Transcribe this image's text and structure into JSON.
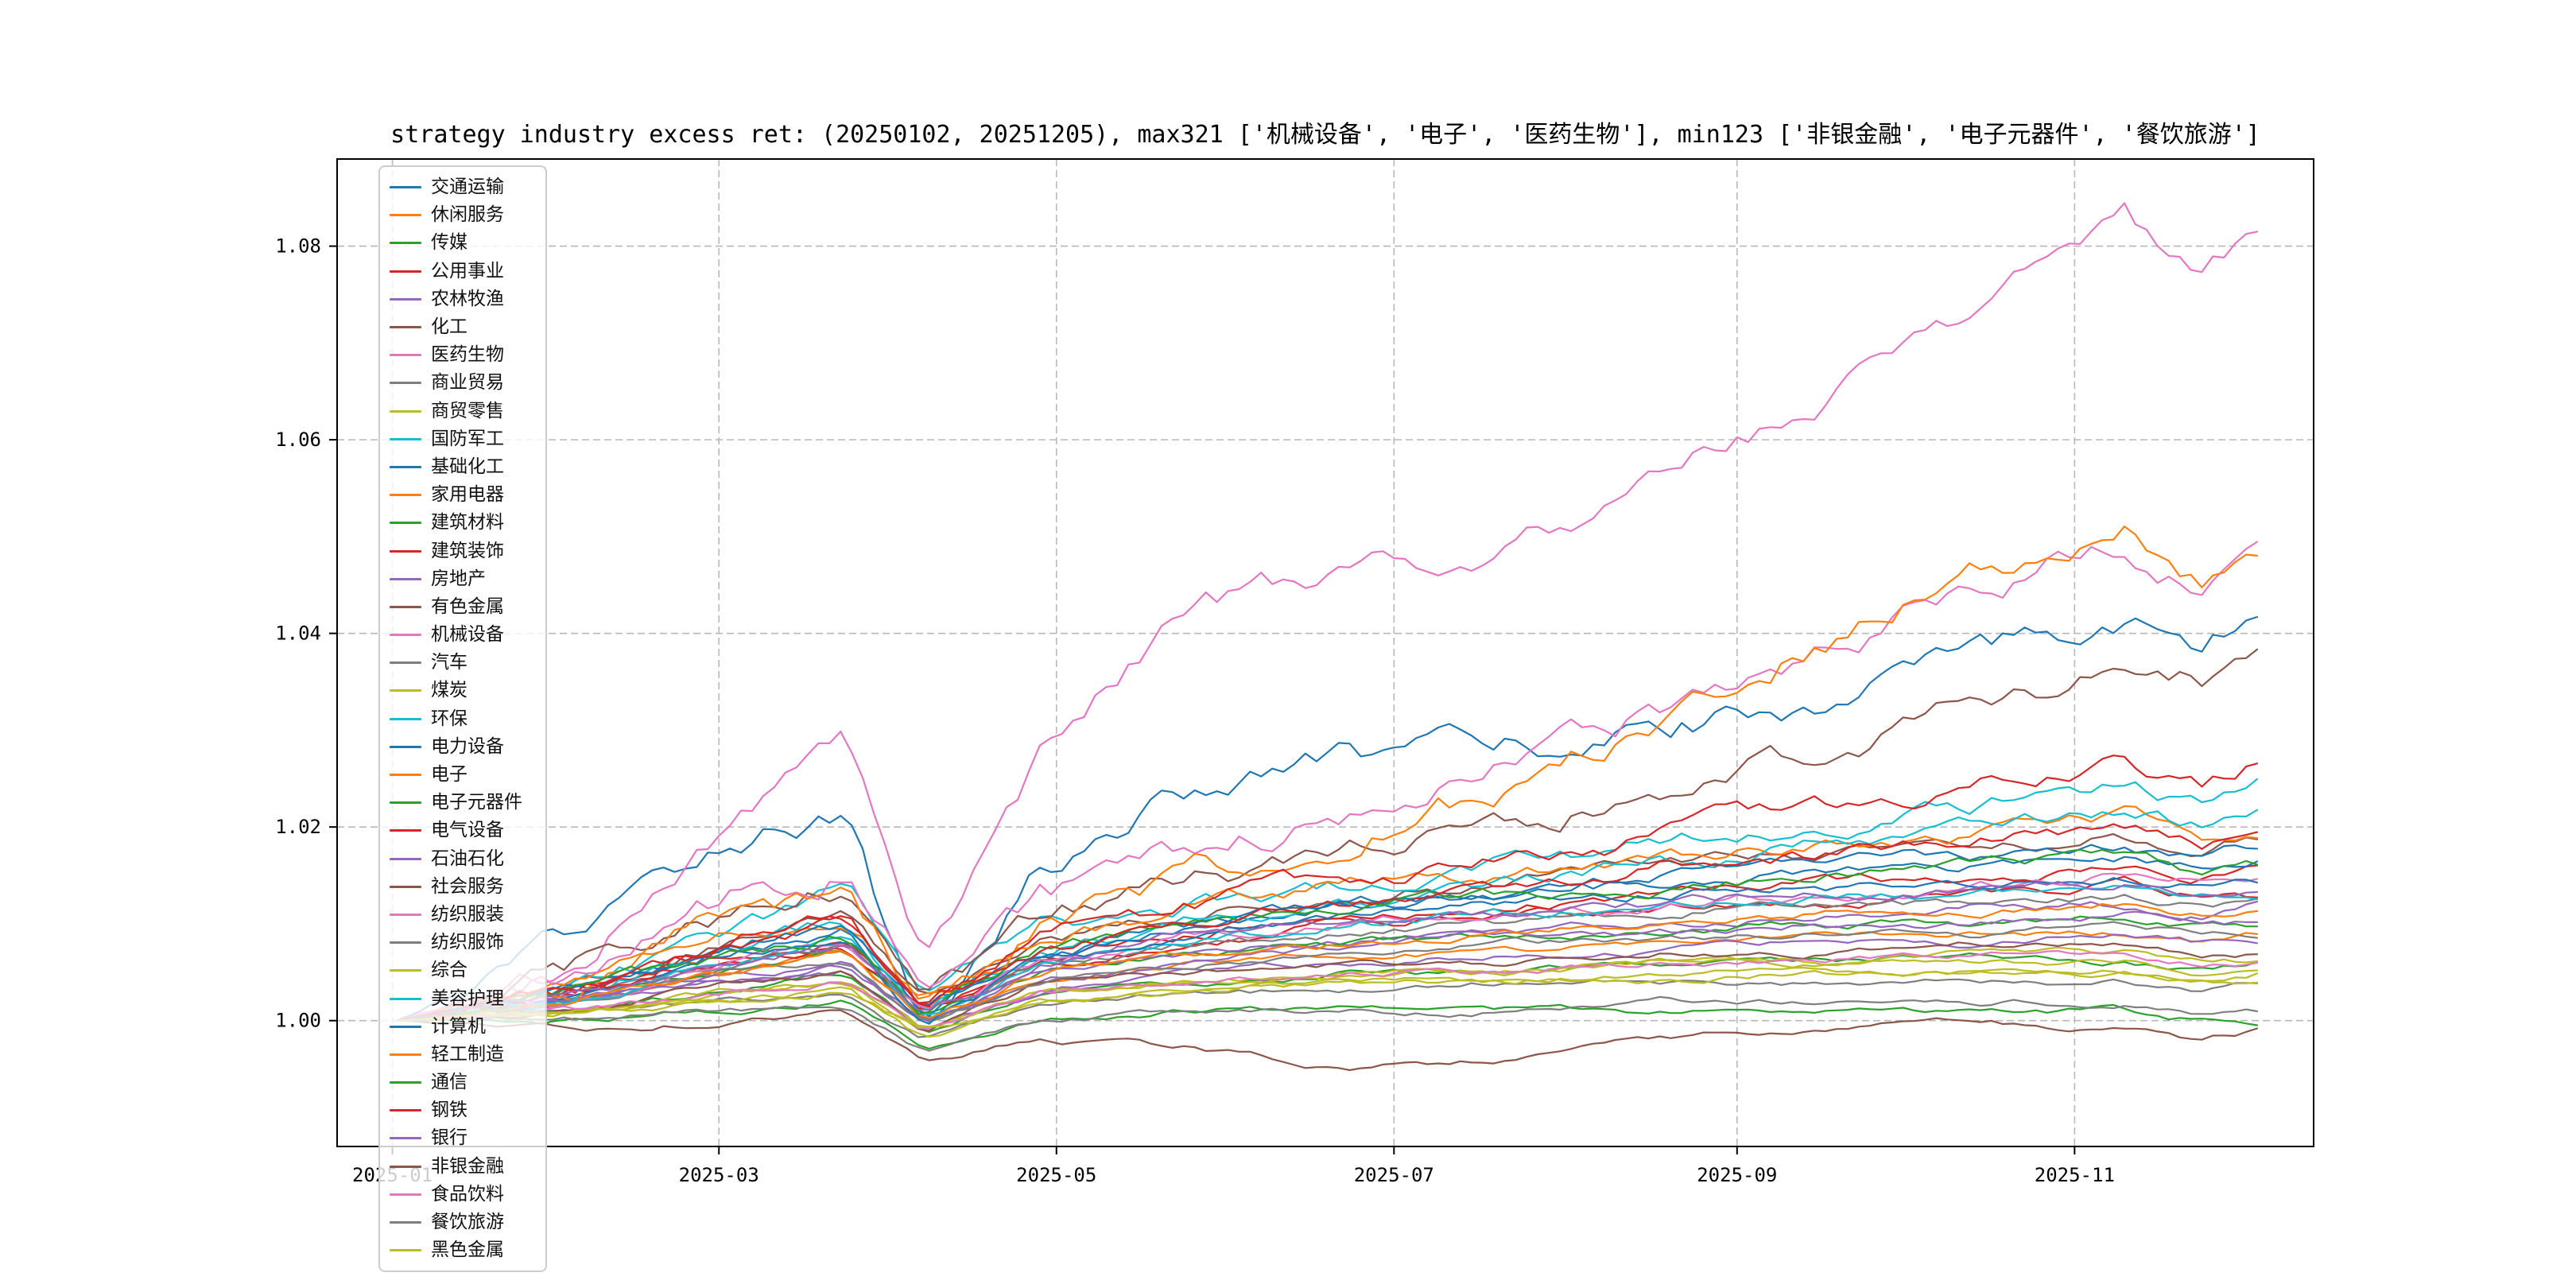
{
  "chart_data": {
    "type": "line",
    "title": "strategy industry excess ret: (20250102, 20251205), max321 ['机械设备', '电子', '医药生物'], min123 ['非银金融', '电子元器件', '餐饮旅游']",
    "xlabel": "",
    "ylabel": "",
    "grid": "dashed",
    "legend_position": "upper left",
    "ylim": [
      0.987,
      1.089
    ],
    "x_range": [
      "2025-01-01",
      "2025-12-10"
    ],
    "y_ticks": [
      1.0,
      1.02,
      1.04,
      1.06,
      1.08
    ],
    "x_tick_labels": [
      "2025-01",
      "2025-03",
      "2025-05",
      "2025-07",
      "2025-09",
      "2025-11"
    ],
    "x_tick_dates": [
      "2025-01-01",
      "2025-03-01",
      "2025-05-01",
      "2025-07-01",
      "2025-09-01",
      "2025-11-01"
    ],
    "control_dates": [
      "2025-01-02",
      "2025-02-03",
      "2025-03-03",
      "2025-03-24",
      "2025-04-07",
      "2025-04-28",
      "2025-05-26",
      "2025-06-23",
      "2025-07-21",
      "2025-08-18",
      "2025-09-15",
      "2025-10-13",
      "2025-11-10",
      "2025-11-24",
      "2025-12-05"
    ],
    "series": [
      {
        "name": "交通运输",
        "color": "#1f77b4",
        "values": [
          1.0,
          1.008,
          1.019,
          1.022,
          0.998,
          1.016,
          1.024,
          1.027,
          1.028,
          1.03,
          1.033,
          1.037,
          1.042,
          1.038,
          1.042
        ]
      },
      {
        "name": "休闲服务",
        "color": "#ff7f0e",
        "values": [
          1.0,
          1.002,
          1.005,
          1.007,
          1.0,
          1.004,
          1.006,
          1.007,
          1.007,
          1.008,
          1.009,
          1.009,
          1.009,
          1.008,
          1.009
        ]
      },
      {
        "name": "传媒",
        "color": "#2ca02c",
        "values": [
          1.0,
          1.001,
          1.003,
          1.005,
          0.999,
          1.003,
          1.004,
          1.005,
          1.005,
          1.006,
          1.006,
          1.007,
          1.006,
          1.005,
          1.006
        ]
      },
      {
        "name": "公用事业",
        "color": "#d62728",
        "values": [
          1.0,
          1.003,
          1.006,
          1.008,
          1.001,
          1.006,
          1.009,
          1.011,
          1.012,
          1.013,
          1.014,
          1.015,
          1.016,
          1.015,
          1.016
        ]
      },
      {
        "name": "农林牧渔",
        "color": "#9467bd",
        "values": [
          1.0,
          1.002,
          1.004,
          1.006,
          1.0,
          1.004,
          1.006,
          1.008,
          1.009,
          1.01,
          1.011,
          1.012,
          1.012,
          1.011,
          1.012
        ]
      },
      {
        "name": "化工",
        "color": "#8c564b",
        "values": [
          1.0,
          1.004,
          1.008,
          1.011,
          1.002,
          1.008,
          1.011,
          1.013,
          1.014,
          1.016,
          1.017,
          1.018,
          1.019,
          1.018,
          1.019
        ]
      },
      {
        "name": "医药生物",
        "color": "#e377c2",
        "values": [
          1.0,
          1.005,
          1.021,
          1.031,
          1.007,
          1.027,
          1.043,
          1.046,
          1.048,
          1.056,
          1.064,
          1.073,
          1.083,
          1.076,
          1.081
        ]
      },
      {
        "name": "商业贸易",
        "color": "#7f7f7f",
        "values": [
          1.0,
          1.001,
          1.002,
          1.003,
          0.998,
          1.002,
          1.003,
          1.003,
          1.004,
          1.004,
          1.004,
          1.004,
          1.004,
          1.003,
          1.004
        ]
      },
      {
        "name": "商贸零售",
        "color": "#bcbd22",
        "values": [
          1.0,
          1.001,
          1.003,
          1.004,
          0.999,
          1.003,
          1.004,
          1.005,
          1.005,
          1.006,
          1.006,
          1.006,
          1.006,
          1.005,
          1.006
        ]
      },
      {
        "name": "国防军工",
        "color": "#17becf",
        "values": [
          1.0,
          1.003,
          1.009,
          1.013,
          1.002,
          1.009,
          1.012,
          1.014,
          1.016,
          1.018,
          1.02,
          1.022,
          1.025,
          1.022,
          1.024
        ]
      },
      {
        "name": "基础化工",
        "color": "#1f77b4",
        "values": [
          1.0,
          1.003,
          1.007,
          1.009,
          1.001,
          1.007,
          1.01,
          1.012,
          1.013,
          1.014,
          1.015,
          1.016,
          1.017,
          1.016,
          1.017
        ]
      },
      {
        "name": "家用电器",
        "color": "#ff7f0e",
        "values": [
          1.0,
          1.004,
          1.009,
          1.011,
          1.002,
          1.008,
          1.012,
          1.014,
          1.015,
          1.017,
          1.018,
          1.019,
          1.021,
          1.019,
          1.02
        ]
      },
      {
        "name": "建筑材料",
        "color": "#2ca02c",
        "values": [
          1.0,
          1.002,
          1.005,
          1.007,
          1.0,
          1.005,
          1.007,
          1.008,
          1.009,
          1.009,
          1.01,
          1.01,
          1.011,
          1.01,
          1.01
        ]
      },
      {
        "name": "建筑装饰",
        "color": "#d62728",
        "values": [
          1.0,
          1.003,
          1.006,
          1.008,
          1.001,
          1.006,
          1.008,
          1.01,
          1.011,
          1.012,
          1.012,
          1.013,
          1.014,
          1.013,
          1.013
        ]
      },
      {
        "name": "房地产",
        "color": "#9467bd",
        "values": [
          1.0,
          1.002,
          1.004,
          1.005,
          0.999,
          1.003,
          1.005,
          1.006,
          1.007,
          1.007,
          1.008,
          1.008,
          1.009,
          1.008,
          1.008
        ]
      },
      {
        "name": "有色金属",
        "color": "#8c564b",
        "values": [
          1.0,
          1.005,
          1.011,
          1.014,
          1.004,
          1.011,
          1.015,
          1.017,
          1.02,
          1.024,
          1.028,
          1.032,
          1.037,
          1.035,
          1.038
        ]
      },
      {
        "name": "机械设备",
        "color": "#e377c2",
        "values": [
          1.0,
          1.004,
          1.012,
          1.016,
          1.003,
          1.012,
          1.017,
          1.021,
          1.026,
          1.032,
          1.038,
          1.044,
          1.05,
          1.045,
          1.049
        ]
      },
      {
        "name": "汽车",
        "color": "#7f7f7f",
        "values": [
          1.0,
          1.002,
          1.006,
          1.008,
          1.0,
          1.006,
          1.008,
          1.009,
          1.01,
          1.011,
          1.012,
          1.012,
          1.013,
          1.012,
          1.012
        ]
      },
      {
        "name": "煤炭",
        "color": "#bcbd22",
        "values": [
          1.0,
          1.001,
          1.003,
          1.004,
          0.999,
          1.003,
          1.004,
          1.005,
          1.005,
          1.006,
          1.006,
          1.007,
          1.007,
          1.006,
          1.006
        ]
      },
      {
        "name": "环保",
        "color": "#17becf",
        "values": [
          1.0,
          1.003,
          1.007,
          1.01,
          1.001,
          1.007,
          1.01,
          1.012,
          1.014,
          1.016,
          1.018,
          1.02,
          1.022,
          1.02,
          1.022
        ]
      },
      {
        "name": "电力设备",
        "color": "#1f77b4",
        "values": [
          1.0,
          1.003,
          1.008,
          1.01,
          1.001,
          1.007,
          1.01,
          1.012,
          1.013,
          1.015,
          1.016,
          1.017,
          1.018,
          1.017,
          1.018
        ]
      },
      {
        "name": "电子",
        "color": "#ff7f0e",
        "values": [
          1.0,
          1.003,
          1.01,
          1.014,
          1.002,
          1.01,
          1.015,
          1.018,
          1.024,
          1.031,
          1.039,
          1.046,
          1.051,
          1.046,
          1.05
        ]
      },
      {
        "name": "电子元器件",
        "color": "#2ca02c",
        "values": [
          1.0,
          1.0,
          1.001,
          1.002,
          0.997,
          1.0,
          1.001,
          1.001,
          1.001,
          1.001,
          1.001,
          1.001,
          1.001,
          1.0,
          1.0
        ]
      },
      {
        "name": "电气设备",
        "color": "#d62728",
        "values": [
          1.0,
          1.003,
          1.008,
          1.011,
          1.002,
          1.008,
          1.012,
          1.014,
          1.016,
          1.019,
          1.022,
          1.024,
          1.027,
          1.024,
          1.027
        ]
      },
      {
        "name": "石油石化",
        "color": "#9467bd",
        "values": [
          1.0,
          1.002,
          1.005,
          1.006,
          1.0,
          1.005,
          1.007,
          1.008,
          1.009,
          1.009,
          1.01,
          1.01,
          1.011,
          1.01,
          1.01
        ]
      },
      {
        "name": "社会服务",
        "color": "#8c564b",
        "values": [
          1.0,
          1.001,
          1.004,
          1.005,
          0.999,
          1.004,
          1.005,
          1.006,
          1.006,
          1.007,
          1.007,
          1.008,
          1.008,
          1.007,
          1.007
        ]
      },
      {
        "name": "纺织服装",
        "color": "#e377c2",
        "values": [
          1.0,
          1.002,
          1.006,
          1.008,
          1.001,
          1.006,
          1.009,
          1.01,
          1.011,
          1.012,
          1.013,
          1.014,
          1.015,
          1.014,
          1.015
        ]
      },
      {
        "name": "纺织服饰",
        "color": "#7f7f7f",
        "values": [
          1.0,
          1.002,
          1.005,
          1.006,
          1.0,
          1.004,
          1.006,
          1.007,
          1.008,
          1.008,
          1.009,
          1.009,
          1.01,
          1.009,
          1.009
        ]
      },
      {
        "name": "综合",
        "color": "#bcbd22",
        "values": [
          1.0,
          1.001,
          1.002,
          1.003,
          0.998,
          1.002,
          1.003,
          1.004,
          1.004,
          1.005,
          1.005,
          1.005,
          1.005,
          1.004,
          1.005
        ]
      },
      {
        "name": "美容护理",
        "color": "#17becf",
        "values": [
          1.0,
          1.002,
          1.006,
          1.008,
          1.0,
          1.006,
          1.008,
          1.01,
          1.011,
          1.012,
          1.013,
          1.013,
          1.014,
          1.013,
          1.013
        ]
      },
      {
        "name": "计算机",
        "color": "#1f77b4",
        "values": [
          1.0,
          1.003,
          1.007,
          1.009,
          1.0,
          1.006,
          1.009,
          1.011,
          1.012,
          1.013,
          1.014,
          1.014,
          1.015,
          1.014,
          1.014
        ]
      },
      {
        "name": "轻工制造",
        "color": "#ff7f0e",
        "values": [
          1.0,
          1.002,
          1.005,
          1.007,
          1.0,
          1.005,
          1.007,
          1.008,
          1.009,
          1.01,
          1.011,
          1.011,
          1.012,
          1.011,
          1.011
        ]
      },
      {
        "name": "通信",
        "color": "#2ca02c",
        "values": [
          1.0,
          1.003,
          1.007,
          1.009,
          1.001,
          1.007,
          1.01,
          1.012,
          1.013,
          1.014,
          1.015,
          1.016,
          1.017,
          1.015,
          1.016
        ]
      },
      {
        "name": "钢铁",
        "color": "#d62728",
        "values": [
          1.0,
          1.003,
          1.007,
          1.01,
          1.001,
          1.007,
          1.01,
          1.012,
          1.014,
          1.016,
          1.017,
          1.019,
          1.02,
          1.018,
          1.019
        ]
      },
      {
        "name": "银行",
        "color": "#9467bd",
        "values": [
          1.0,
          1.003,
          1.006,
          1.008,
          1.001,
          1.006,
          1.009,
          1.01,
          1.011,
          1.012,
          1.013,
          1.013,
          1.014,
          1.013,
          1.013
        ]
      },
      {
        "name": "非银金融",
        "color": "#8c564b",
        "values": [
          1.0,
          0.999,
          1.0,
          1.001,
          0.996,
          0.998,
          0.997,
          0.995,
          0.996,
          0.998,
          0.999,
          1.0,
          0.999,
          0.998,
          0.999
        ]
      },
      {
        "name": "食品饮料",
        "color": "#e377c2",
        "values": [
          1.0,
          1.001,
          1.003,
          1.004,
          0.999,
          1.003,
          1.004,
          1.005,
          1.005,
          1.006,
          1.006,
          1.007,
          1.007,
          1.006,
          1.006
        ]
      },
      {
        "name": "餐饮旅游",
        "color": "#7f7f7f",
        "values": [
          1.0,
          1.0,
          1.001,
          1.001,
          0.997,
          1.0,
          1.001,
          1.001,
          1.001,
          1.002,
          1.002,
          1.002,
          1.002,
          1.001,
          1.001
        ]
      },
      {
        "name": "黑色金属",
        "color": "#bcbd22",
        "values": [
          1.0,
          1.001,
          1.002,
          1.003,
          0.999,
          1.002,
          1.003,
          1.004,
          1.004,
          1.004,
          1.005,
          1.005,
          1.005,
          1.004,
          1.004
        ]
      }
    ],
    "style": {
      "grid_color": "#b8b8b8",
      "spine_color": "#000000",
      "background": "#ffffff",
      "legend_border": "#cccccc"
    }
  }
}
